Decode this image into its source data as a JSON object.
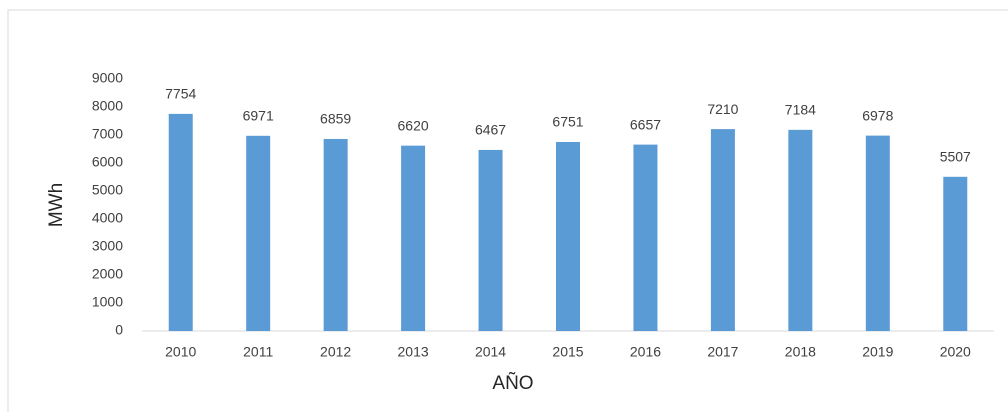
{
  "chart_data": {
    "type": "bar",
    "x_label": "AÑO",
    "y_label": "MWh",
    "categories": [
      "2010",
      "2011",
      "2012",
      "2013",
      "2014",
      "2015",
      "2016",
      "2017",
      "2018",
      "2019",
      "2020"
    ],
    "values": [
      7754,
      6971,
      6859,
      6620,
      6467,
      6751,
      6657,
      7210,
      7184,
      6978,
      5507
    ],
    "color": "#5b9bd5",
    "ylim": [
      0,
      9000
    ],
    "yticks": [
      0,
      1000,
      2000,
      3000,
      4000,
      5000,
      6000,
      7000,
      8000,
      9000
    ],
    "grid": false
  }
}
